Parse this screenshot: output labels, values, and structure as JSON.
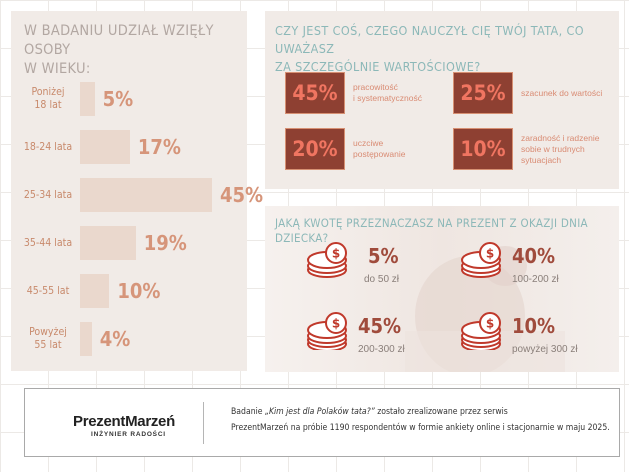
{
  "chart_data": [
    {
      "type": "bar",
      "title": "W BADANIU UDZIAŁ WZIĘŁY OSOBY W WIEKU:",
      "categories": [
        "Poniżej 18 lat",
        "18-24 lata",
        "25-34 lata",
        "35-44 lata",
        "45-55 lat",
        "Powyżej 55 lat"
      ],
      "values": [
        5,
        17,
        45,
        19,
        10,
        4
      ],
      "value_labels": [
        "5%",
        "17%",
        "45%",
        "19%",
        "10%",
        "4%"
      ],
      "orientation": "horizontal",
      "xlim": [
        0,
        45
      ]
    },
    {
      "type": "table",
      "title": "CZY JEST COŚ, CZEGO NAUCZYŁ CIĘ TWÓJ TATA, CO UWAŻASZ ZA SZCZEGÓLNIE WARTOŚCIOWE?",
      "items": [
        {
          "value": 45,
          "label": "45%",
          "text": "pracowitość i systematyczność"
        },
        {
          "value": 25,
          "label": "25%",
          "text": "szacunek do wartości"
        },
        {
          "value": 20,
          "label": "20%",
          "text": "uczciwe postępowanie"
        },
        {
          "value": 10,
          "label": "10%",
          "text": "zaradność i radzenie sobie w trudnych sytuacjach"
        }
      ]
    },
    {
      "type": "table",
      "title": "JAKĄ KWOTĘ PRZEZNACZASZ NA PREZENT Z OKAZJI DNIA DZIECKA?",
      "items": [
        {
          "value": 5,
          "label": "5%",
          "range": "do 50 zł"
        },
        {
          "value": 40,
          "label": "40%",
          "range": "100-200 zł"
        },
        {
          "value": 45,
          "label": "45%",
          "range": "200-300 zł"
        },
        {
          "value": 10,
          "label": "10%",
          "range": "powyżej 300 zł"
        }
      ]
    }
  ],
  "left": {
    "title_lines": [
      "W BADANIU UDZIAŁ WZIĘŁY OSOBY",
      "W WIEKU:"
    ],
    "label_lines": [
      [
        "Poniżej",
        "18 lat"
      ],
      [
        "18-24 lata"
      ],
      [
        "25-34 lata"
      ],
      [
        "35-44 lata"
      ],
      [
        "45-55 lat"
      ],
      [
        "Powyżej",
        "55 lat"
      ]
    ]
  },
  "top": {
    "title_lines": [
      "CZY JEST COŚ, CZEGO NAUCZYŁ CIĘ TWÓJ TATA, CO UWAŻASZ",
      "ZA SZCZEGÓLNIE WARTOŚCIOWE?"
    ],
    "text_lines": [
      [
        "pracowitość",
        "i systematyczność"
      ],
      [
        "szacunek do wartości"
      ],
      [
        "uczciwe",
        "postępowanie"
      ],
      [
        "zaradność i radzenie",
        "sobie w trudnych",
        "sytuacjach"
      ]
    ]
  },
  "bottom": {
    "title": "JAKĄ KWOTĘ PRZEZNACZASZ NA PREZENT Z OKAZJI DNIA DZIECKA?"
  },
  "footer": {
    "brand": "PrezentMarzeń",
    "brand_sub": "INŻYNIER RADOŚCI",
    "line1_prefix": "Badanie ",
    "line1_italic": "„Kim jest dla Polaków tata?”",
    "line1_suffix": " zostało zrealizowane przez serwis",
    "line2": "PrezentMarzeń na próbie 1190 respondentów w formie ankiety online i stacjonarnie w maju 2025."
  },
  "colors": {
    "bar": "#ead8cd",
    "bar_value": "#d6957a",
    "age_label": "#c88a6c",
    "value_box": "#8e4032",
    "value_box_text": "#f07561",
    "title_teal": "#8cb8b8",
    "coin": "#c0392b"
  },
  "icons": [
    "coin-stack-icon"
  ]
}
